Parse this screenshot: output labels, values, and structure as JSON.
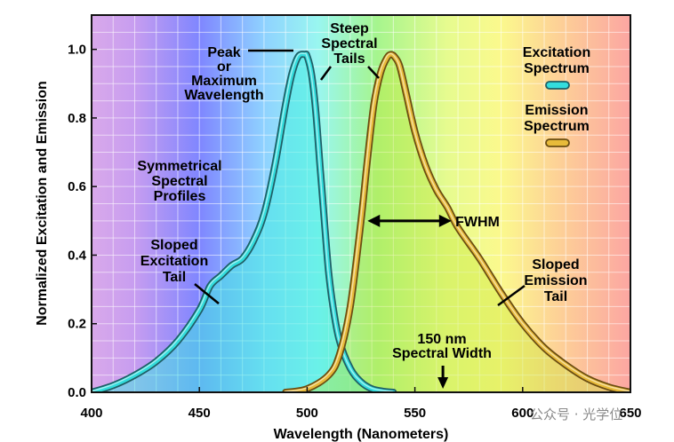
{
  "chart_data": {
    "type": "line",
    "xlabel": "Wavelength (Nanometers)",
    "ylabel": "Normalized Excitation and Emission",
    "xlim": [
      400,
      650
    ],
    "ylim": [
      0,
      1.1
    ],
    "x_ticks": [
      "400",
      "450",
      "500",
      "550",
      "600",
      "650"
    ],
    "y_ticks": [
      "0.0",
      "0.2",
      "0.4",
      "0.6",
      "0.8",
      "1.0"
    ],
    "grid": true,
    "legend_position": "top-right",
    "series": [
      {
        "name": "Excitation Spectrum",
        "color": "#33dddd",
        "x": [
          400,
          410,
          420,
          430,
          440,
          450,
          455,
          460,
          465,
          470,
          475,
          480,
          485,
          490,
          493,
          496,
          499,
          500,
          502,
          504,
          506,
          508,
          510,
          512,
          515,
          520,
          525,
          530,
          535,
          540
        ],
        "y": [
          0.0,
          0.02,
          0.05,
          0.09,
          0.15,
          0.24,
          0.31,
          0.34,
          0.37,
          0.39,
          0.44,
          0.52,
          0.66,
          0.84,
          0.93,
          0.98,
          0.985,
          0.98,
          0.93,
          0.82,
          0.66,
          0.5,
          0.35,
          0.25,
          0.15,
          0.07,
          0.03,
          0.01,
          0.003,
          0.0
        ]
      },
      {
        "name": "Emission Spectrum",
        "color": "#e8bb3a",
        "x": [
          490,
          500,
          510,
          515,
          520,
          525,
          528,
          531,
          534,
          537,
          539,
          541,
          543,
          546,
          550,
          555,
          560,
          565,
          570,
          580,
          590,
          600,
          610,
          620,
          630,
          640,
          650
        ],
        "y": [
          0.0,
          0.01,
          0.05,
          0.11,
          0.25,
          0.5,
          0.68,
          0.84,
          0.93,
          0.975,
          0.985,
          0.975,
          0.95,
          0.87,
          0.76,
          0.66,
          0.59,
          0.54,
          0.48,
          0.39,
          0.29,
          0.2,
          0.13,
          0.08,
          0.04,
          0.015,
          0.0
        ]
      }
    ],
    "annotations": {
      "peak": [
        "Peak",
        "or",
        "Maximum",
        "Wavelength"
      ],
      "steep": [
        "Steep",
        "Spectral",
        "Tails"
      ],
      "symmetrical": [
        "Symmetrical",
        "Spectral",
        "Profiles"
      ],
      "sloped_excitation": [
        "Sloped",
        "Excitation",
        "Tail"
      ],
      "fwhm": "FWHM",
      "sloped_emission": [
        "Sloped",
        "Emission",
        "Tail"
      ],
      "spectral_width": [
        "150 nm",
        "Spectral Width"
      ]
    },
    "legend": {
      "excitation": [
        "Excitation",
        "Spectrum"
      ],
      "emission": [
        "Emission",
        "Spectrum"
      ]
    }
  },
  "watermark": "公众号 · 光学位"
}
